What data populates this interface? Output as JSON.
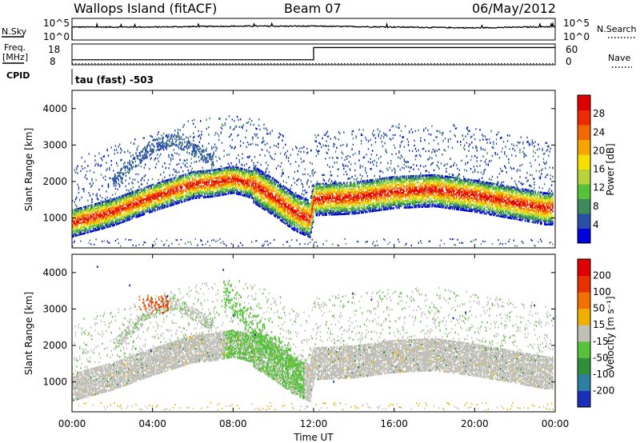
{
  "header": {
    "station": "Wallops Island (fitACF)",
    "beam": "Beam 07",
    "date": "06/May/2012"
  },
  "side_labels": {
    "nsky": "N.Sky",
    "nsearch": "N.Search",
    "freq_line1": "Freq.",
    "freq_line2": "[MHz]",
    "nave": "Nave",
    "cpid": "CPID",
    "cpid_value": "tau (fast) -503"
  },
  "noise_panel": {
    "left_ticks": [
      "10^5",
      "10^0"
    ],
    "right_ticks": [
      "10^5",
      "10^0"
    ]
  },
  "freq_panel": {
    "left_ticks": [
      "18",
      "8"
    ],
    "right_ticks": [
      "60",
      "0"
    ]
  },
  "power_panel": {
    "ylabel": "Slant Range [km]",
    "yticks": [
      "4000",
      "3000",
      "2000",
      "1000"
    ],
    "colorbar_label": "Power [dB]",
    "colorbar_ticks": [
      "28",
      "24",
      "20",
      "16",
      "12",
      "8",
      "4"
    ],
    "colors": [
      "#0000dd",
      "#2a4fa6",
      "#3f8a5a",
      "#56c23a",
      "#b8d23a",
      "#f6e000",
      "#f7a500",
      "#f36800",
      "#ee2a00",
      "#e00000"
    ]
  },
  "velocity_panel": {
    "ylabel": "Slant Range [km]",
    "yticks": [
      "4000",
      "3000",
      "2000",
      "1000"
    ],
    "colorbar_label": "Velocity [m s⁻¹]",
    "colorbar_ticks": [
      "200",
      "100",
      "50",
      "15",
      "-15",
      "-50",
      "-100",
      "-200"
    ],
    "colors": [
      "#1a2fb8",
      "#2b7fa0",
      "#2f8f3a",
      "#56c23a",
      "#c0c0b8",
      "#f0b000",
      "#f07000",
      "#e83000",
      "#e00000"
    ]
  },
  "xaxis": {
    "label": "Time UT",
    "ticks": [
      "00:00",
      "04:00",
      "08:00",
      "12:00",
      "16:00",
      "20:00",
      "00:00"
    ]
  },
  "chart_data": [
    {
      "type": "line",
      "name": "noise",
      "x": [
        "00:00",
        "04:00",
        "08:00",
        "12:00",
        "16:00",
        "20:00",
        "24:00"
      ],
      "series": [
        {
          "name": "N.Sky",
          "values": [
            3.0,
            3.0,
            3.2,
            3.2,
            3.0,
            2.8,
            3.1
          ]
        },
        {
          "name": "N.Search",
          "values": [
            0,
            0,
            0,
            0,
            0,
            0,
            0
          ]
        }
      ],
      "ylim": [
        "10^0",
        "10^5"
      ]
    },
    {
      "type": "line",
      "name": "frequency",
      "x": [
        "00:00",
        "04:00",
        "08:00",
        "11:50",
        "12:00",
        "16:00",
        "20:00",
        "24:00"
      ],
      "series": [
        {
          "name": "Freq. [MHz]",
          "values": [
            10.4,
            10.4,
            10.4,
            10.4,
            16.3,
            16.3,
            16.3,
            16.3
          ]
        },
        {
          "name": "Nave",
          "values": [
            3,
            3,
            3,
            3,
            3,
            3,
            3,
            3
          ]
        }
      ],
      "ylim_left": [
        8,
        18
      ],
      "ylim_right": [
        0,
        60
      ]
    },
    {
      "type": "heatmap",
      "name": "power",
      "xlabel": "Time UT",
      "ylabel": "Slant Range [km]",
      "ylim": [
        180,
        4500
      ],
      "zlim": [
        0,
        30
      ],
      "zlabel": "Power [dB]",
      "main_band": {
        "x": [
          0.0,
          2.0,
          4.0,
          6.0,
          7.0,
          8.0,
          9.0,
          10.0,
          11.0,
          11.8,
          12.0,
          14.0,
          16.0,
          18.0,
          20.0,
          22.0,
          23.5
        ],
        "y": [
          900,
          1200,
          1600,
          1950,
          2000,
          2100,
          1950,
          1600,
          1200,
          1000,
          1550,
          1600,
          1750,
          1800,
          1650,
          1450,
          1300
        ]
      },
      "upper_echoes": {
        "x": [
          2.0,
          3.0,
          4.0,
          5.0,
          6.0,
          7.0
        ],
        "y": [
          2000,
          2500,
          3000,
          3200,
          2900,
          2600
        ]
      }
    },
    {
      "type": "heatmap",
      "name": "velocity",
      "xlabel": "Time UT",
      "ylabel": "Slant Range [km]",
      "ylim": [
        180,
        4500
      ],
      "zlim": [
        -200,
        200
      ],
      "zlabel": "Velocity [m s⁻¹]",
      "main_band": {
        "x": [
          0.0,
          2.0,
          4.0,
          6.0,
          7.0,
          8.0,
          9.0,
          10.0,
          11.0,
          11.8,
          12.0,
          14.0,
          16.0,
          18.0,
          20.0,
          22.0,
          23.5
        ],
        "y": [
          900,
          1200,
          1600,
          1950,
          2000,
          2100,
          1950,
          1600,
          1200,
          1000,
          1550,
          1600,
          1750,
          1800,
          1650,
          1450,
          1300
        ]
      },
      "positive_region": {
        "x": [
          7.5,
          11.5
        ],
        "y": [
          1000,
          3600
        ],
        "velocity": 50
      },
      "negative_region": {
        "x": [
          3.3,
          4.8
        ],
        "y": [
          2900,
          3400
        ],
        "velocity": -150
      }
    }
  ]
}
